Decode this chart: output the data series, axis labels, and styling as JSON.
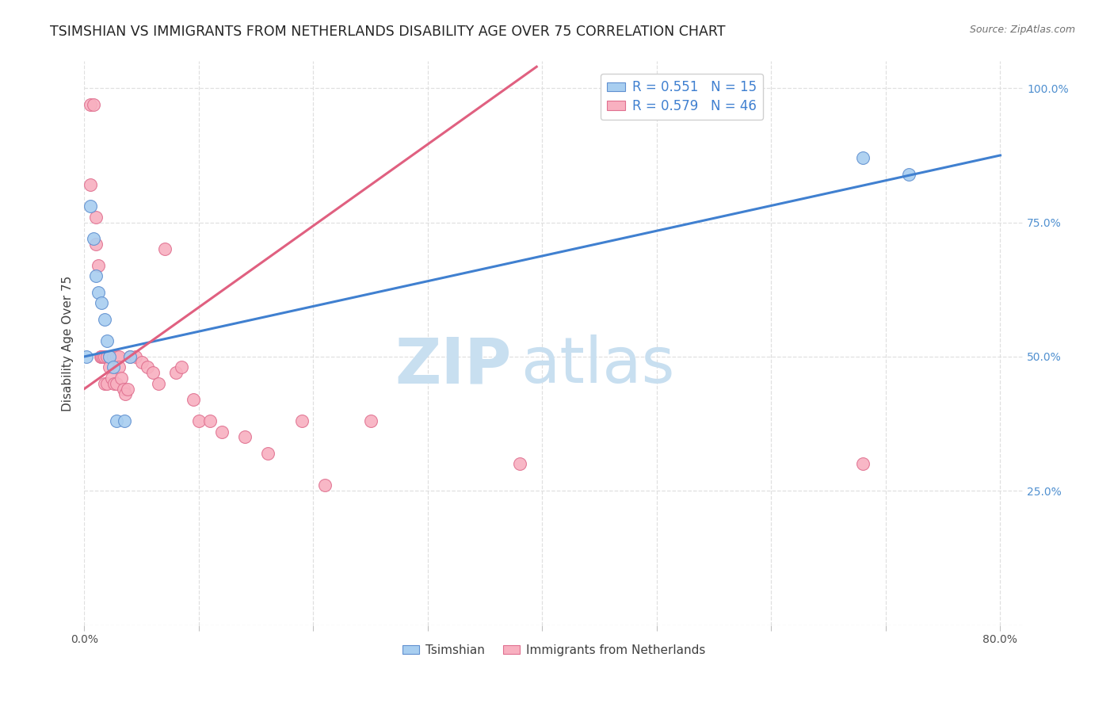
{
  "title": "TSIMSHIAN VS IMMIGRANTS FROM NETHERLANDS DISABILITY AGE OVER 75 CORRELATION CHART",
  "source": "Source: ZipAtlas.com",
  "ylabel": "Disability Age Over 75",
  "xlim": [
    0.0,
    0.82
  ],
  "ylim": [
    0.0,
    1.05
  ],
  "tsimshian_x": [
    0.002,
    0.005,
    0.008,
    0.01,
    0.012,
    0.015,
    0.018,
    0.02,
    0.022,
    0.025,
    0.028,
    0.035,
    0.04,
    0.68,
    0.72
  ],
  "tsimshian_y": [
    0.5,
    0.78,
    0.72,
    0.65,
    0.62,
    0.6,
    0.57,
    0.53,
    0.5,
    0.48,
    0.38,
    0.38,
    0.5,
    0.87,
    0.84
  ],
  "netherlands_x": [
    0.005,
    0.008,
    0.005,
    0.01,
    0.01,
    0.012,
    0.014,
    0.015,
    0.016,
    0.018,
    0.018,
    0.02,
    0.02,
    0.022,
    0.022,
    0.024,
    0.025,
    0.026,
    0.028,
    0.028,
    0.03,
    0.03,
    0.032,
    0.034,
    0.036,
    0.038,
    0.04,
    0.045,
    0.05,
    0.055,
    0.06,
    0.065,
    0.07,
    0.08,
    0.085,
    0.095,
    0.1,
    0.11,
    0.12,
    0.14,
    0.16,
    0.19,
    0.21,
    0.25,
    0.38,
    0.68
  ],
  "netherlands_y": [
    0.97,
    0.97,
    0.82,
    0.76,
    0.71,
    0.67,
    0.5,
    0.5,
    0.5,
    0.5,
    0.45,
    0.5,
    0.45,
    0.5,
    0.48,
    0.46,
    0.5,
    0.45,
    0.5,
    0.45,
    0.5,
    0.48,
    0.46,
    0.44,
    0.43,
    0.44,
    0.5,
    0.5,
    0.49,
    0.48,
    0.47,
    0.45,
    0.7,
    0.47,
    0.48,
    0.42,
    0.38,
    0.38,
    0.36,
    0.35,
    0.32,
    0.38,
    0.26,
    0.38,
    0.3,
    0.3
  ],
  "blue_line_x": [
    0.0,
    0.8
  ],
  "blue_line_y": [
    0.5,
    0.875
  ],
  "pink_line_x": [
    0.0,
    0.395
  ],
  "pink_line_y": [
    0.44,
    1.04
  ],
  "scatter_size": 130,
  "blue_color": "#a8cef0",
  "pink_color": "#f8b0c0",
  "blue_edge": "#6090d0",
  "pink_edge": "#e07090",
  "blue_line_color": "#4080d0",
  "pink_line_color": "#e06080",
  "watermark_zip_color": "#c8dff0",
  "watermark_atlas_color": "#c8dff0",
  "grid_color": "#e0e0e0",
  "background_color": "#ffffff",
  "title_fontsize": 12.5,
  "ylabel_fontsize": 11,
  "tick_fontsize": 10,
  "legend_fontsize": 12,
  "right_tick_color": "#5090d0",
  "bottom_legend_label1": "Tsimshian",
  "bottom_legend_label2": "Immigrants from Netherlands"
}
